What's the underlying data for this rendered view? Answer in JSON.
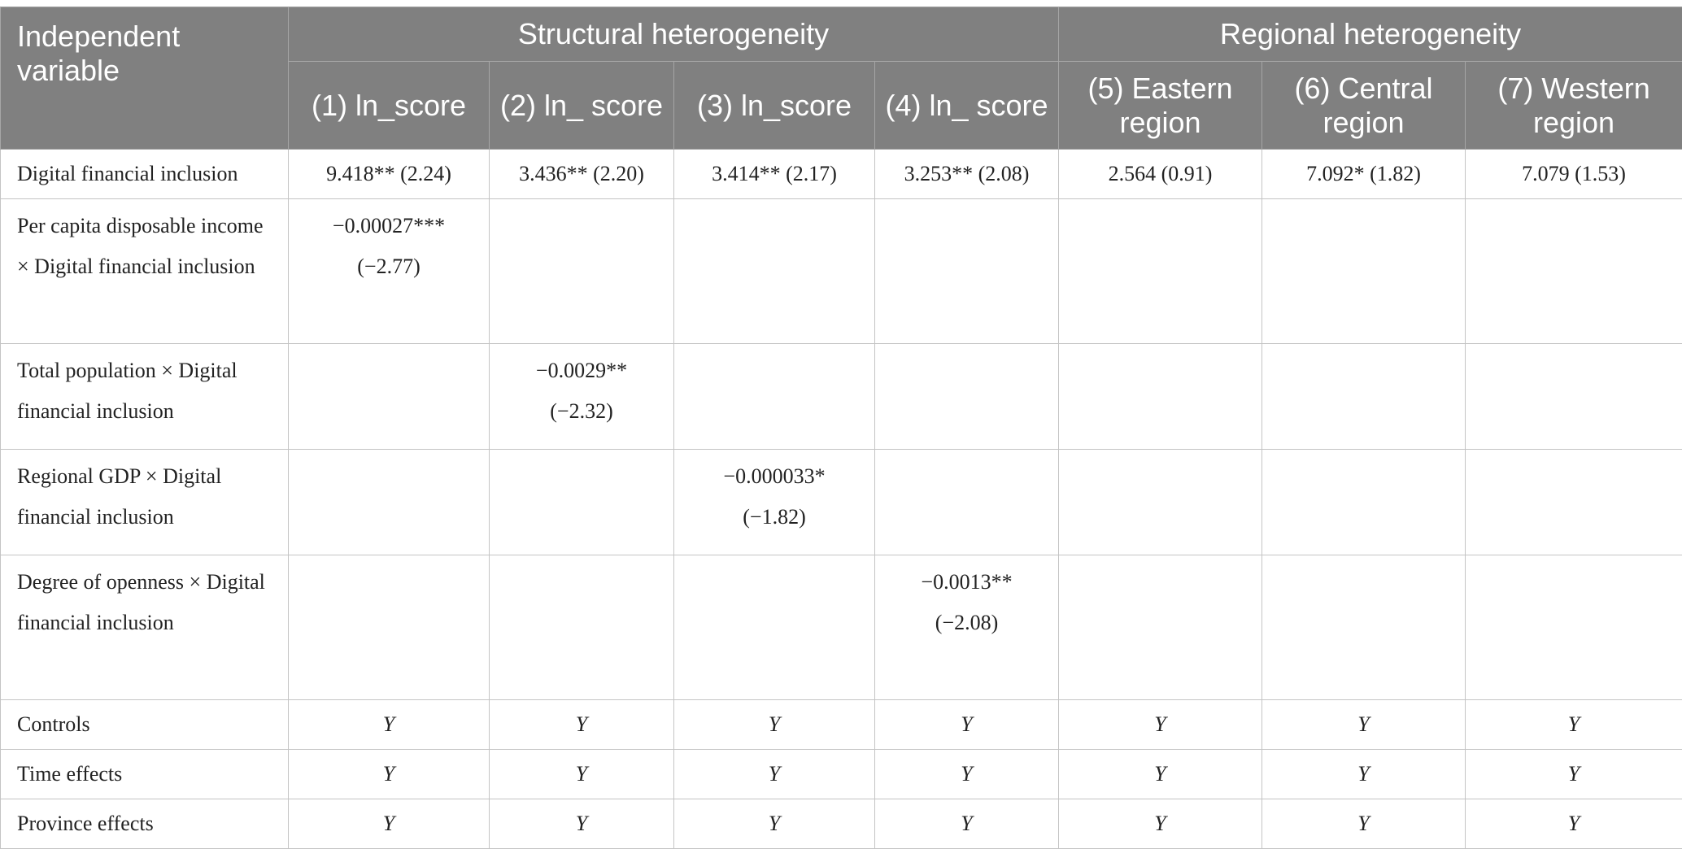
{
  "header": {
    "corner": "Independent variable",
    "groups": [
      "Structural heterogeneity",
      "Regional heterogeneity"
    ],
    "columns": [
      "(1) ln_score",
      "(2) ln_ score",
      "(3) ln_score",
      "(4) ln_ score",
      "(5) Eastern region",
      "(6) Central region",
      "(7) Western region"
    ]
  },
  "rows": [
    {
      "label": "Digital financial inclusion",
      "cells": [
        "9.418** (2.24)",
        "3.436** (2.20)",
        "3.414** (2.17)",
        "3.253** (2.08)",
        "2.564 (0.91)",
        "7.092* (1.82)",
        "7.079 (1.53)"
      ]
    },
    {
      "label": "Per capita disposable income × Digital financial inclusion",
      "cells": [
        {
          "coef": "−0.00027***",
          "t": "(−2.77)"
        },
        "",
        "",
        "",
        "",
        "",
        ""
      ]
    },
    {
      "label": "Total population × Digital financial inclusion",
      "cells": [
        "",
        {
          "coef": "−0.0029**",
          "t": "(−2.32)"
        },
        "",
        "",
        "",
        "",
        ""
      ]
    },
    {
      "label": "Regional GDP × Digital financial inclusion",
      "cells": [
        "",
        "",
        {
          "coef": "−0.000033*",
          "t": "(−1.82)"
        },
        "",
        "",
        "",
        ""
      ]
    },
    {
      "label": "Degree of openness × Digital financial inclusion",
      "cells": [
        "",
        "",
        "",
        {
          "coef": "−0.0013**",
          "t": "(−2.08)"
        },
        "",
        "",
        ""
      ]
    },
    {
      "label": "Controls",
      "cells": [
        "Y",
        "Y",
        "Y",
        "Y",
        "Y",
        "Y",
        "Y"
      ]
    },
    {
      "label": "Time effects",
      "cells": [
        "Y",
        "Y",
        "Y",
        "Y",
        "Y",
        "Y",
        "Y"
      ]
    },
    {
      "label": "Province effects",
      "cells": [
        "Y",
        "Y",
        "Y",
        "Y",
        "Y",
        "Y",
        "Y"
      ]
    }
  ],
  "colors": {
    "header_bg": "#808080",
    "header_text": "#ffffff",
    "grid": "#c4c4c4",
    "body_text": "#222222"
  }
}
